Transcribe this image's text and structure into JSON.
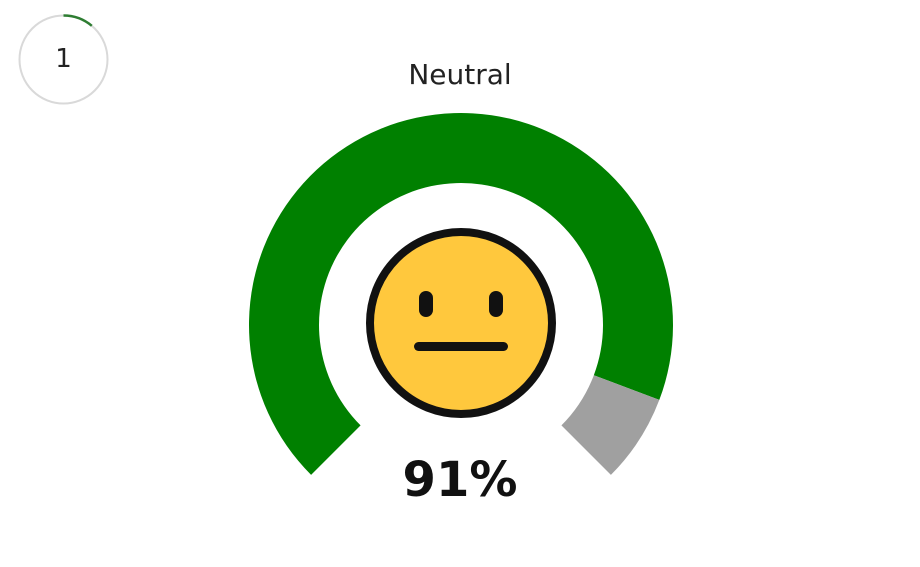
{
  "question": {
    "number": "1"
  },
  "gauge": {
    "label": "Neutral",
    "value": 91,
    "value_text": "91%",
    "fill_color": "#008000",
    "remainder_color": "#a0a0a0",
    "face": "neutral-face-icon"
  },
  "colors": {
    "progress_ring": "#2e7d32",
    "ring_track": "#d9d9d9",
    "face_fill": "#ffc83d",
    "face_outline": "#111111"
  }
}
